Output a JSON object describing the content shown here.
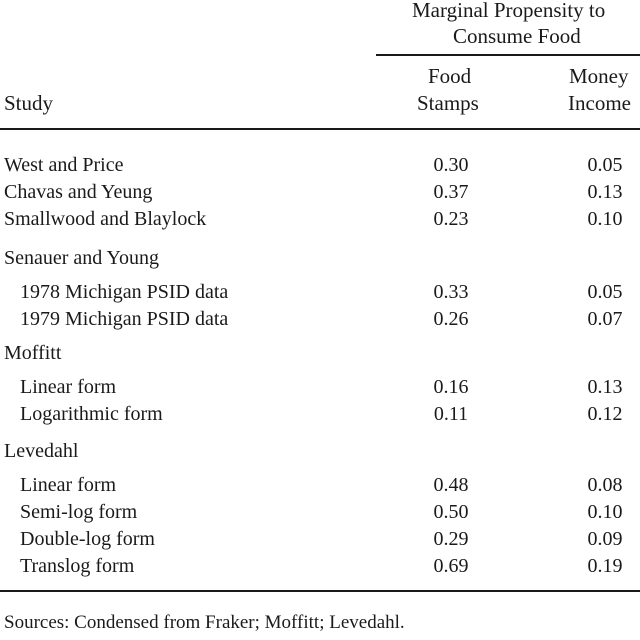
{
  "header": {
    "group_line1": "Marginal Propensity to",
    "group_line2": "Consume Food",
    "study": "Study",
    "col1_line1": "Food",
    "col1_line2": "Stamps",
    "col2_line1": "Money",
    "col2_line2": "Income"
  },
  "rows": [
    {
      "label": "West and Price",
      "food": "0.30",
      "money": "0.05"
    },
    {
      "label": "Chavas and Yeung",
      "food": "0.37",
      "money": "0.13"
    },
    {
      "label": "Smallwood and Blaylock",
      "food": "0.23",
      "money": "0.10"
    },
    {
      "label": "Senauer and Young"
    },
    {
      "label": "1978 Michigan PSID data",
      "food": "0.33",
      "money": "0.05"
    },
    {
      "label": "1979 Michigan PSID data",
      "food": "0.26",
      "money": "0.07"
    },
    {
      "label": "Moffitt"
    },
    {
      "label": "Linear form",
      "food": "0.16",
      "money": "0.13"
    },
    {
      "label": "Logarithmic form",
      "food": "0.11",
      "money": "0.12"
    },
    {
      "label": "Levedahl"
    },
    {
      "label": "Linear form",
      "food": "0.48",
      "money": "0.08"
    },
    {
      "label": "Semi-log form",
      "food": "0.50",
      "money": "0.10"
    },
    {
      "label": "Double-log form",
      "food": "0.29",
      "money": "0.09"
    },
    {
      "label": "Translog form",
      "food": "0.69",
      "money": "0.19"
    }
  ],
  "footer": "Sources: Condensed from Fraker; Moffitt; Levedahl."
}
